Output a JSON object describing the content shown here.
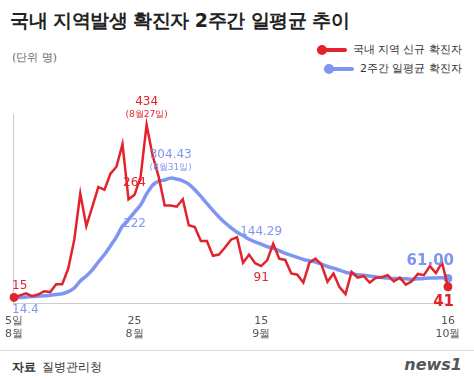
{
  "chart_data": {
    "type": "line",
    "title": "국내 지역발생 확진자 2주간 일평균 추이",
    "subtitle": "(단위 명)",
    "source_label": "자료",
    "source": "질병관리청",
    "logo": "news1",
    "legend": "top-right",
    "grid": false,
    "tick_labels": "x",
    "ylim": [
      0,
      460
    ],
    "categories": [
      "5일\n8월",
      null,
      null,
      null,
      null,
      null,
      null,
      null,
      null,
      null,
      null,
      null,
      null,
      null,
      null,
      null,
      null,
      null,
      null,
      null,
      "25\n8월",
      null,
      null,
      null,
      null,
      null,
      null,
      null,
      null,
      null,
      null,
      null,
      null,
      null,
      null,
      null,
      null,
      null,
      null,
      null,
      null,
      "15\n9월",
      null,
      null,
      null,
      null,
      null,
      null,
      null,
      null,
      null,
      null,
      null,
      null,
      null,
      null,
      null,
      null,
      null,
      null,
      null,
      null,
      null,
      null,
      null,
      null,
      null,
      null,
      null,
      null,
      null,
      null,
      "16\n10월"
    ],
    "series": [
      {
        "name": "국내 지역 신규 확진자",
        "color": "#e3232c",
        "values": [
          15,
          20,
          25,
          18,
          22,
          30,
          28,
          47,
          47,
          85,
          155,
          267,
          188,
          235,
          283,
          276,
          315,
          332,
          387,
          253,
          264,
          307,
          434,
          359,
          308,
          238,
          238,
          235,
          253,
          190,
          186,
          152,
          152,
          116,
          119,
          136,
          155,
          161,
          99,
          119,
          98,
          91,
          105,
          145,
          109,
          106,
          73,
          70,
          51,
          99,
          109,
          95,
          53,
          73,
          40,
          23,
          77,
          63,
          67,
          51,
          62,
          64,
          69,
          54,
          63,
          46,
          54,
          72,
          69,
          91,
          74,
          100,
          41
        ]
      },
      {
        "name": "2주간 일평균 확진자",
        "color": "#7f95f2",
        "values": [
          14.4,
          15,
          16,
          17,
          18,
          19,
          20,
          22,
          24,
          29,
          38,
          55,
          67,
          82,
          101,
          119,
          140,
          162,
          188,
          204,
          222,
          239,
          266,
          287,
          297,
          300,
          304.43,
          302,
          298,
          290,
          276,
          260,
          243,
          226,
          210,
          196,
          184,
          173,
          165,
          156,
          150,
          144.29,
          138,
          134,
          128,
          122,
          117,
          112,
          107,
          104,
          101,
          96,
          90,
          86,
          81,
          76,
          73,
          70,
          69,
          67,
          65,
          63,
          62,
          61,
          61,
          60,
          59,
          60,
          61,
          62,
          62,
          63,
          61
        ]
      }
    ],
    "annotations": [
      {
        "series": "국내 지역 신규 확진자",
        "at": 0,
        "text": "15"
      },
      {
        "series": "2주간 일평균 확진자",
        "at": 0,
        "text": "14.4"
      },
      {
        "series": "국내 지역 신규 확진자",
        "at": 22,
        "text": "434",
        "note": "(8월27일)"
      },
      {
        "series": "2주간 일평균 확진자",
        "at": 26,
        "text": "304.43",
        "note": "(8월31일)"
      },
      {
        "series": "국내 지역 신규 확진자",
        "at": 20,
        "text": "264"
      },
      {
        "series": "2주간 일평균 확진자",
        "at": 20,
        "text": "222"
      },
      {
        "series": "2주간 일평균 확진자",
        "at": 41,
        "text": "144.29"
      },
      {
        "series": "국내 지역 신규 확진자",
        "at": 41,
        "text": "91"
      },
      {
        "series": "2주간 일평균 확진자",
        "at": 72,
        "text": "61.00"
      },
      {
        "series": "국내 지역 신규 확진자",
        "at": 72,
        "text": "41"
      }
    ]
  }
}
